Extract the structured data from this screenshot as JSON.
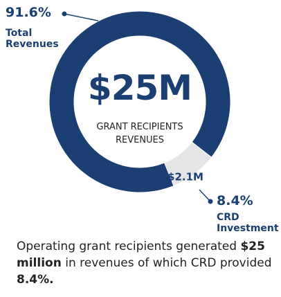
{
  "chart_data": {
    "type": "donut",
    "categories": [
      "Total Revenues",
      "CRD Investment"
    ],
    "values": [
      91.6,
      8.4
    ],
    "value_labels": [
      "91.6%",
      "8.4%"
    ],
    "segment_labels": [
      null,
      "$2.1M"
    ],
    "colors": [
      "#1b3f73",
      "#e4e5e7"
    ],
    "center_value": "$25M",
    "center_label": "GRANT RECIPIENTS REVENUES",
    "caption": [
      "Operating grant recipients generated ",
      "$25 million",
      " in revenues of which CRD provided ",
      "8.4%."
    ]
  }
}
